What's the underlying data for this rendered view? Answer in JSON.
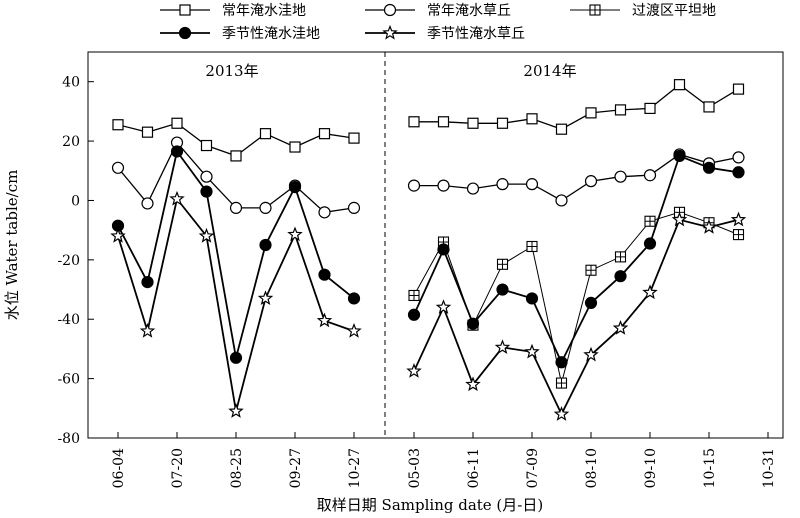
{
  "chart_data": {
    "type": "line",
    "xlabel": "取样日期 Sampling date (月-日)",
    "ylabel": "水位 Water table/cm",
    "ylim": [
      -80,
      50
    ],
    "yticks": [
      -80,
      -60,
      -40,
      -20,
      0,
      20,
      40
    ],
    "grid": false,
    "legend_position": "top",
    "panels": [
      {
        "label": "2013年",
        "ticks": [
          "06-04",
          "07-20",
          "08-25",
          "09-27",
          "10-27"
        ],
        "points": 9,
        "series": [
          {
            "name": "常年淹水洼地",
            "marker": "square",
            "values": [
              25.5,
              23,
              26,
              18.5,
              15,
              22.5,
              18,
              22.5,
              21
            ]
          },
          {
            "name": "常年淹水草丘",
            "marker": "circle",
            "values": [
              11,
              -1,
              19.5,
              8,
              -2.5,
              -2.5,
              5,
              -4,
              -2.5
            ]
          },
          {
            "name": "季节性淹水洼地",
            "marker": "filled-circle",
            "values": [
              -8.5,
              -27.5,
              16.5,
              3,
              -53,
              -15,
              4.5,
              -25,
              -33
            ]
          },
          {
            "name": "季节性淹水草丘",
            "marker": "star",
            "values": [
              -12,
              -44,
              0.5,
              -12,
              -71,
              -33,
              -11.5,
              -40.5,
              -44
            ]
          }
        ]
      },
      {
        "label": "2014年",
        "ticks": [
          "05-03",
          "06-11",
          "07-09",
          "08-10",
          "09-10",
          "10-15",
          "10-31"
        ],
        "points": 12,
        "series": [
          {
            "name": "常年淹水洼地",
            "marker": "square",
            "values": [
              26.5,
              26.5,
              26,
              26,
              27.5,
              24,
              29.5,
              30.5,
              31,
              39,
              31.5,
              37.5
            ]
          },
          {
            "name": "常年淹水草丘",
            "marker": "circle",
            "values": [
              5,
              5,
              4,
              5.5,
              5.5,
              0,
              6.5,
              8,
              8.5,
              15.5,
              12.5,
              14.5
            ]
          },
          {
            "name": "过渡区平坦地",
            "marker": "square-cross",
            "values": [
              -32,
              -14,
              -42,
              -21.5,
              -15.5,
              -61.5,
              -23.5,
              -19,
              -7,
              -4,
              -7.5,
              -11.5
            ]
          },
          {
            "name": "季节性淹水洼地",
            "marker": "filled-circle",
            "values": [
              -38.5,
              -16.5,
              -41.5,
              -30,
              -33,
              -54.5,
              -34.5,
              -25.5,
              -14.5,
              15,
              11,
              9.5
            ]
          },
          {
            "name": "季节性淹水草丘",
            "marker": "star",
            "values": [
              -57.5,
              -36,
              -62,
              -49.5,
              -51,
              -72,
              -52,
              -43,
              -31,
              -6.5,
              -9,
              -6.5
            ]
          }
        ]
      }
    ],
    "legend": [
      {
        "name": "常年淹水洼地",
        "marker": "square"
      },
      {
        "name": "常年淹水草丘",
        "marker": "circle"
      },
      {
        "name": "过渡区平坦地",
        "marker": "square-cross"
      },
      {
        "name": "季节性淹水洼地",
        "marker": "filled-circle"
      },
      {
        "name": "季节性淹水草丘",
        "marker": "star"
      }
    ]
  }
}
